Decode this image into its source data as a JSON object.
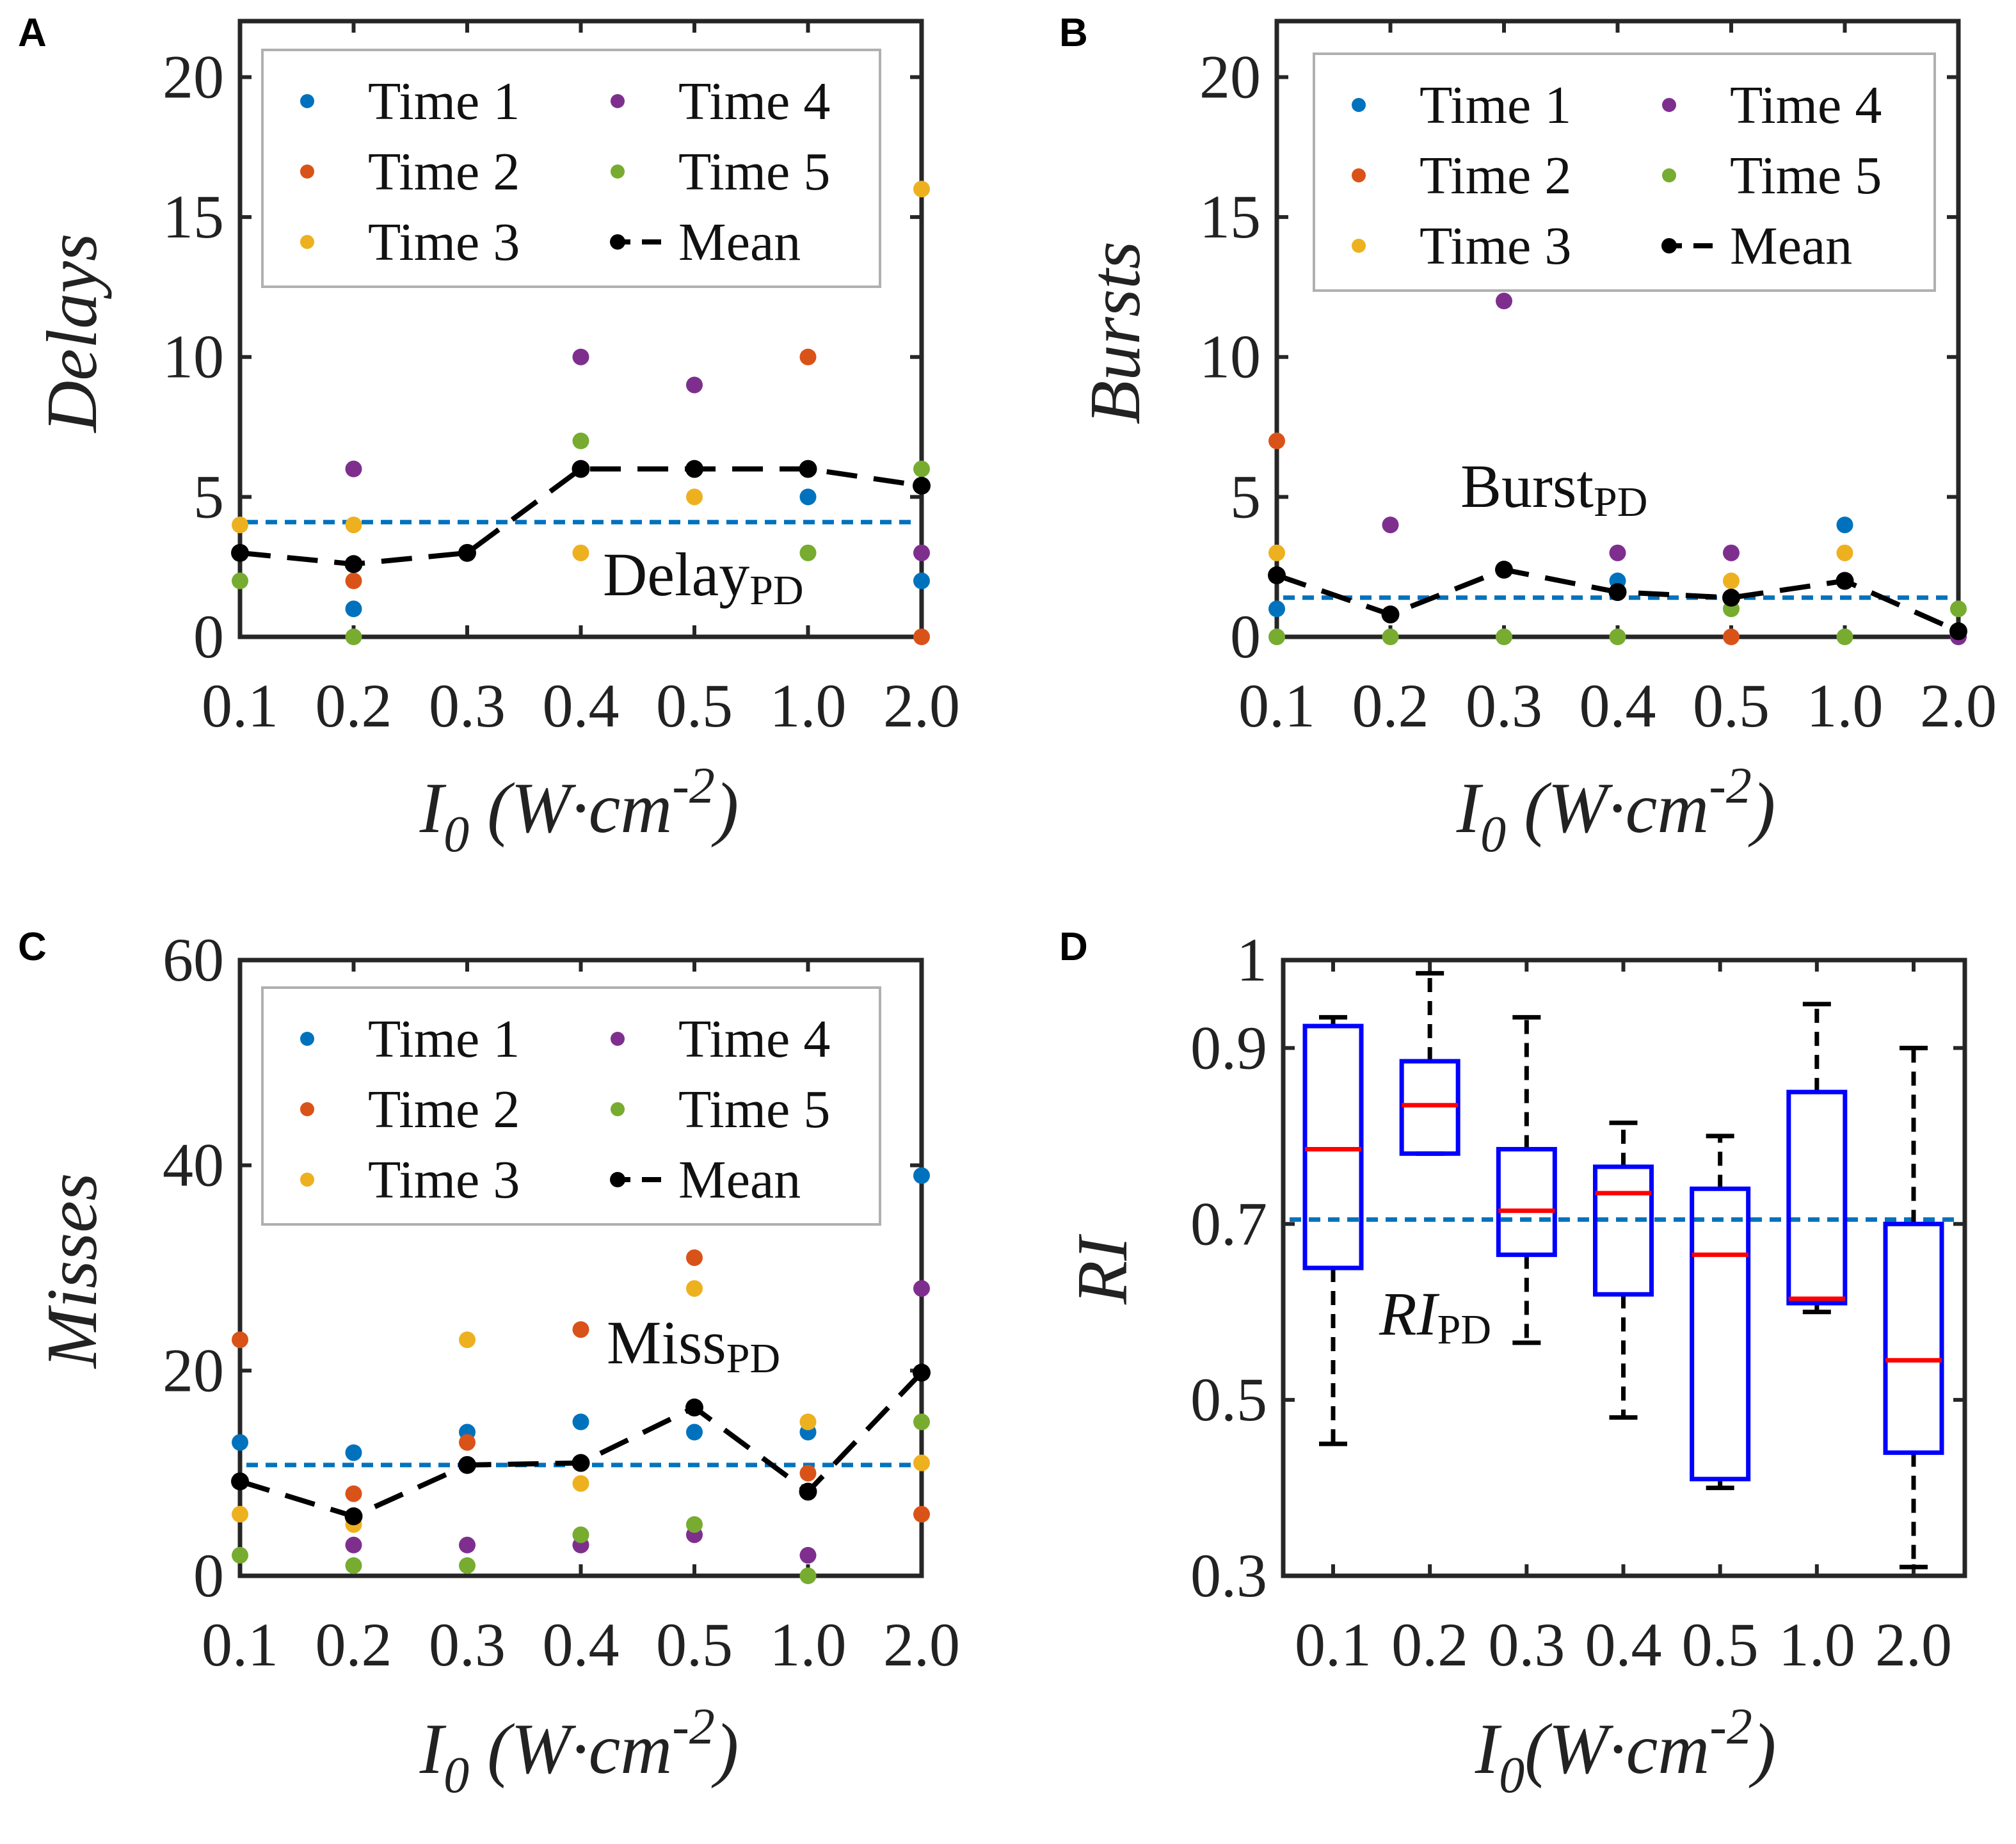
{
  "chart_data": [
    {
      "type": "scatter",
      "panel": "A",
      "ylabel": "Delays",
      "xlabel": {
        "main": "I",
        "sub": "0",
        "unit": " (W·cm",
        "sup": "-2",
        "close": ")"
      },
      "categories": [
        "0.1",
        "0.2",
        "0.3",
        "0.4",
        "0.5",
        "1.0",
        "2.0"
      ],
      "ylim": [
        0,
        22
      ],
      "yticks": [
        "0",
        "5",
        "10",
        "15",
        "20"
      ],
      "series": [
        {
          "name": "Time 1",
          "color": "#0072BD",
          "values": [
            null,
            1,
            null,
            null,
            null,
            5,
            2
          ]
        },
        {
          "name": "Time 2",
          "color": "#D95319",
          "values": [
            null,
            2,
            null,
            null,
            null,
            10,
            0
          ]
        },
        {
          "name": "Time 3",
          "color": "#EDB120",
          "values": [
            4,
            4,
            null,
            3,
            5,
            null,
            16
          ]
        },
        {
          "name": "Time 4",
          "color": "#7E2F8E",
          "values": [
            null,
            6,
            null,
            10,
            9,
            null,
            3
          ]
        },
        {
          "name": "Time 5",
          "color": "#77AC30",
          "values": [
            2,
            0,
            null,
            7,
            null,
            3,
            6
          ]
        }
      ],
      "mean": {
        "name": "Mean",
        "color": "#000000",
        "values": [
          3,
          2.6,
          3,
          6,
          6,
          6,
          5.4
        ]
      },
      "reference": {
        "label": "Delay",
        "sub": "PD",
        "value": 4.1,
        "color": "#0072BD"
      }
    },
    {
      "type": "scatter",
      "panel": "B",
      "ylabel": "Bursts",
      "xlabel": {
        "main": "I",
        "sub": "0",
        "unit": " (W·cm",
        "sup": "-2",
        "close": ")"
      },
      "categories": [
        "0.1",
        "0.2",
        "0.3",
        "0.4",
        "0.5",
        "1.0",
        "2.0"
      ],
      "ylim": [
        0,
        22
      ],
      "yticks": [
        "0",
        "5",
        "10",
        "15",
        "20"
      ],
      "series": [
        {
          "name": "Time 1",
          "color": "#0072BD",
          "values": [
            1,
            null,
            null,
            2,
            null,
            4,
            null
          ]
        },
        {
          "name": "Time 2",
          "color": "#D95319",
          "values": [
            7,
            null,
            null,
            null,
            0,
            null,
            null
          ]
        },
        {
          "name": "Time 3",
          "color": "#EDB120",
          "values": [
            3,
            null,
            null,
            null,
            2,
            3,
            null
          ]
        },
        {
          "name": "Time 4",
          "color": "#7E2F8E",
          "values": [
            null,
            4,
            12,
            3,
            3,
            null,
            0
          ]
        },
        {
          "name": "Time 5",
          "color": "#77AC30",
          "values": [
            0,
            0,
            0,
            0,
            1,
            0,
            1
          ]
        }
      ],
      "mean": {
        "name": "Mean",
        "color": "#000000",
        "values": [
          2.2,
          0.8,
          2.4,
          1.6,
          1.4,
          2,
          0.2
        ]
      },
      "reference": {
        "label": "Burst",
        "sub": "PD",
        "value": 1.4,
        "color": "#0072BD"
      }
    },
    {
      "type": "scatter",
      "panel": "C",
      "ylabel": "Misses",
      "xlabel": {
        "main": "I",
        "sub": "0",
        "unit": " (W·cm",
        "sup": "-2",
        "close": ")"
      },
      "categories": [
        "0.1",
        "0.2",
        "0.3",
        "0.4",
        "0.5",
        "1.0",
        "2.0"
      ],
      "ylim": [
        0,
        60
      ],
      "yticks": [
        "0",
        "20",
        "40",
        "60"
      ],
      "series": [
        {
          "name": "Time 1",
          "color": "#0072BD",
          "values": [
            13,
            12,
            14,
            15,
            14,
            14,
            39
          ]
        },
        {
          "name": "Time 2",
          "color": "#D95319",
          "values": [
            23,
            8,
            13,
            24,
            31,
            10,
            6
          ]
        },
        {
          "name": "Time 3",
          "color": "#EDB120",
          "values": [
            6,
            5,
            23,
            9,
            28,
            15,
            11
          ]
        },
        {
          "name": "Time 4",
          "color": "#7E2F8E",
          "values": [
            null,
            3,
            3,
            3,
            4,
            2,
            28
          ]
        },
        {
          "name": "Time 5",
          "color": "#77AC30",
          "values": [
            2,
            1,
            1,
            4,
            5,
            0,
            15
          ]
        }
      ],
      "mean": {
        "name": "Mean",
        "color": "#000000",
        "values": [
          9.2,
          5.8,
          10.8,
          11,
          16.4,
          8.2,
          19.8
        ]
      },
      "reference": {
        "label": "Miss",
        "sub": "PD",
        "value": 10.8,
        "color": "#0072BD"
      }
    },
    {
      "type": "box",
      "panel": "D",
      "ylabel": "RI",
      "xlabel": {
        "main": "I",
        "sub": "0",
        "unit": "(W·cm",
        "sup": "-2",
        "close": ")"
      },
      "categories": [
        "0.1",
        "0.2",
        "0.3",
        "0.4",
        "0.5",
        "1.0",
        "2.0"
      ],
      "ylim": [
        0.3,
        1
      ],
      "yticks": [
        "0.3",
        "0.5",
        "0.7",
        "0.9",
        "1"
      ],
      "boxes": [
        {
          "min": 0.45,
          "q1": 0.65,
          "median": 0.785,
          "q3": 0.925,
          "max": 0.935
        },
        {
          "min": 0.78,
          "q1": 0.78,
          "median": 0.835,
          "q3": 0.885,
          "max": 0.985
        },
        {
          "min": 0.565,
          "q1": 0.665,
          "median": 0.715,
          "q3": 0.785,
          "max": 0.935
        },
        {
          "min": 0.48,
          "q1": 0.62,
          "median": 0.735,
          "q3": 0.765,
          "max": 0.815
        },
        {
          "min": 0.4,
          "q1": 0.41,
          "median": 0.665,
          "q3": 0.74,
          "max": 0.8
        },
        {
          "min": 0.6,
          "q1": 0.61,
          "median": 0.615,
          "q3": 0.85,
          "max": 0.95
        },
        {
          "min": 0.31,
          "q1": 0.44,
          "median": 0.545,
          "q3": 0.7,
          "max": 0.9
        }
      ],
      "box_color": "#0000FF",
      "median_color": "#FF0000",
      "reference": {
        "label": "RI",
        "sub": "PD",
        "value": 0.705,
        "color": "#0072BD"
      }
    }
  ]
}
